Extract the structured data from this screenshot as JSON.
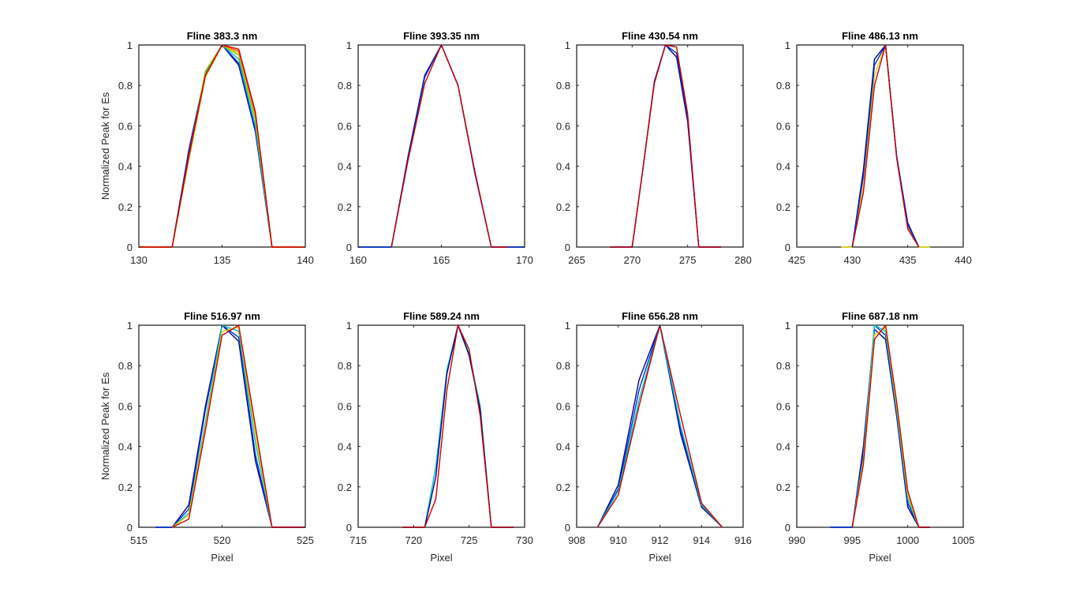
{
  "chart_data": [
    {
      "type": "line",
      "title": "Fline 383.3 nm",
      "ylabel": "Normalized Peak for Es",
      "xlabel": "",
      "xlim": [
        130,
        140
      ],
      "ylim": [
        0,
        1
      ],
      "xticks": [
        "130",
        "135",
        "140"
      ],
      "yticks": [
        "0",
        "0.2",
        "0.4",
        "0.6",
        "0.8",
        "1"
      ],
      "grid": false,
      "series": [
        {
          "color": "#00008f",
          "x": [
            130,
            131,
            132,
            133,
            134,
            135,
            136,
            137,
            138,
            139,
            140
          ],
          "y": [
            0,
            0,
            0,
            0.48,
            0.86,
            1.0,
            0.9,
            0.57,
            0,
            0,
            0
          ]
        },
        {
          "color": "#0033cc",
          "x": [
            130,
            131,
            132,
            133,
            134,
            135,
            136,
            137,
            138,
            139,
            140
          ],
          "y": [
            0,
            0,
            0,
            0.47,
            0.85,
            1.0,
            0.91,
            0.58,
            0,
            0,
            0
          ]
        },
        {
          "color": "#00c0c0",
          "x": [
            130,
            131,
            132,
            133,
            134,
            135,
            136,
            137,
            138,
            139,
            140
          ],
          "y": [
            0,
            0,
            0,
            0.45,
            0.86,
            1.0,
            0.93,
            0.6,
            0,
            0,
            0
          ]
        },
        {
          "color": "#80c000",
          "x": [
            130,
            131,
            132,
            133,
            134,
            135,
            136,
            137,
            138,
            139,
            140
          ],
          "y": [
            0,
            0,
            0,
            0.44,
            0.87,
            1.0,
            0.95,
            0.63,
            0,
            0,
            0
          ]
        },
        {
          "color": "#e6d200",
          "x": [
            130,
            131,
            132,
            133,
            134,
            135,
            136,
            137,
            138,
            139,
            140
          ],
          "y": [
            0,
            0,
            0,
            0.43,
            0.84,
            1.0,
            0.96,
            0.65,
            0,
            0,
            0
          ]
        },
        {
          "color": "#ff4000",
          "x": [
            130,
            131,
            132,
            133,
            134,
            135,
            136,
            137,
            138,
            139,
            140
          ],
          "y": [
            0,
            0,
            0,
            0.44,
            0.85,
            1.0,
            0.97,
            0.66,
            0,
            0,
            0
          ]
        },
        {
          "color": "#cc0000",
          "x": [
            130,
            131,
            132,
            133,
            134,
            135,
            136,
            137,
            138,
            139,
            140
          ],
          "y": [
            0,
            0,
            0,
            0.45,
            0.85,
            1.0,
            0.98,
            0.67,
            0,
            0,
            0
          ]
        }
      ]
    },
    {
      "type": "line",
      "title": "Fline 393.35 nm",
      "ylabel": "",
      "xlabel": "",
      "xlim": [
        160,
        170
      ],
      "ylim": [
        0,
        1
      ],
      "xticks": [
        "160",
        "165",
        "170"
      ],
      "yticks": [
        "0",
        "0.2",
        "0.4",
        "0.6",
        "0.8",
        "1"
      ],
      "grid": false,
      "series": [
        {
          "color": "#00008f",
          "x": [
            160,
            161,
            162,
            163,
            164,
            165,
            166,
            167,
            168,
            169,
            170
          ],
          "y": [
            0,
            0,
            0,
            0.45,
            0.85,
            1.0,
            0.8,
            0.37,
            0,
            0,
            0
          ]
        },
        {
          "color": "#0033cc",
          "x": [
            160,
            161,
            162,
            163,
            164,
            165,
            166,
            167,
            168,
            169,
            170
          ],
          "y": [
            0,
            0,
            0,
            0.44,
            0.84,
            1.0,
            0.8,
            0.37,
            0,
            0,
            0
          ]
        },
        {
          "color": "#cc0000",
          "x": [
            162,
            163,
            164,
            165,
            166,
            167,
            168,
            169
          ],
          "y": [
            0,
            0.43,
            0.81,
            1.0,
            0.8,
            0.38,
            0,
            0
          ]
        }
      ]
    },
    {
      "type": "line",
      "title": "Fline 430.54 nm",
      "ylabel": "",
      "xlabel": "",
      "xlim": [
        265,
        280
      ],
      "ylim": [
        0,
        1
      ],
      "xticks": [
        "265",
        "270",
        "275",
        "280"
      ],
      "yticks": [
        "0",
        "0.2",
        "0.4",
        "0.6",
        "0.8",
        "1"
      ],
      "grid": false,
      "series": [
        {
          "color": "#00008f",
          "x": [
            268,
            269,
            270,
            271,
            272,
            273,
            274,
            275,
            276,
            277,
            278
          ],
          "y": [
            0,
            0,
            0,
            0.4,
            0.82,
            1.0,
            0.94,
            0.62,
            0,
            0,
            0
          ]
        },
        {
          "color": "#0033cc",
          "x": [
            268,
            269,
            270,
            271,
            272,
            273,
            274,
            275,
            276,
            277,
            278
          ],
          "y": [
            0,
            0,
            0,
            0.4,
            0.82,
            1.0,
            0.96,
            0.64,
            0,
            0,
            0
          ]
        },
        {
          "color": "#cc0000",
          "x": [
            268,
            269,
            270,
            271,
            272,
            273,
            274,
            275,
            276,
            277,
            278
          ],
          "y": [
            0,
            0,
            0,
            0.4,
            0.81,
            1.0,
            0.99,
            0.66,
            0,
            0,
            0
          ]
        }
      ]
    },
    {
      "type": "line",
      "title": "Fline 486.13 nm",
      "ylabel": "",
      "xlabel": "",
      "xlim": [
        425,
        440
      ],
      "ylim": [
        0,
        1
      ],
      "xticks": [
        "425",
        "430",
        "435",
        "440"
      ],
      "yticks": [
        "0",
        "0.2",
        "0.4",
        "0.6",
        "0.8",
        "1"
      ],
      "grid": false,
      "series": [
        {
          "color": "#e6d200",
          "x": [
            429,
            430,
            431,
            432,
            433,
            434,
            435,
            436,
            437
          ],
          "y": [
            0,
            0,
            0.3,
            0.85,
            1.0,
            0.45,
            0.1,
            0,
            0
          ]
        },
        {
          "color": "#00008f",
          "x": [
            430,
            431,
            432,
            433,
            434,
            435,
            436
          ],
          "y": [
            0,
            0.38,
            0.93,
            1.0,
            0.45,
            0.12,
            0
          ]
        },
        {
          "color": "#0033cc",
          "x": [
            430,
            431,
            432,
            433,
            434,
            435,
            436
          ],
          "y": [
            0,
            0.35,
            0.9,
            1.0,
            0.45,
            0.11,
            0
          ]
        },
        {
          "color": "#cc0000",
          "x": [
            430,
            431,
            432,
            433,
            434,
            435,
            436
          ],
          "y": [
            0,
            0.27,
            0.8,
            1.0,
            0.44,
            0.09,
            0
          ]
        }
      ]
    },
    {
      "type": "line",
      "title": "Fline 516.97 nm",
      "ylabel": "Normalized Peak for Es",
      "xlabel": "Pixel",
      "xlim": [
        515,
        525
      ],
      "ylim": [
        0,
        1
      ],
      "xticks": [
        "515",
        "520",
        "525"
      ],
      "yticks": [
        "0",
        "0.2",
        "0.4",
        "0.6",
        "0.8",
        "1"
      ],
      "grid": false,
      "series": [
        {
          "color": "#00008f",
          "x": [
            516,
            517,
            518,
            519,
            520,
            521,
            522,
            523,
            524,
            525
          ],
          "y": [
            0,
            0,
            0.11,
            0.6,
            1.0,
            0.92,
            0.33,
            0,
            0,
            0
          ]
        },
        {
          "color": "#0033cc",
          "x": [
            516,
            517,
            518,
            519,
            520,
            521,
            522,
            523,
            524,
            525
          ],
          "y": [
            0,
            0,
            0.09,
            0.58,
            1.0,
            0.94,
            0.36,
            0,
            0,
            0
          ]
        },
        {
          "color": "#00c0c0",
          "x": [
            517,
            518,
            519,
            520,
            521,
            522,
            523
          ],
          "y": [
            0,
            0.07,
            0.52,
            1.0,
            0.97,
            0.42,
            0
          ]
        },
        {
          "color": "#e6d200",
          "x": [
            517,
            518,
            519,
            520,
            521,
            522,
            523
          ],
          "y": [
            0,
            0.06,
            0.5,
            0.97,
            0.99,
            0.46,
            0
          ]
        },
        {
          "color": "#cc0000",
          "x": [
            517,
            518,
            519,
            520,
            521,
            522,
            523,
            524,
            525
          ],
          "y": [
            0,
            0.04,
            0.48,
            0.95,
            1.0,
            0.5,
            0,
            0,
            0
          ]
        }
      ]
    },
    {
      "type": "line",
      "title": "Fline 589.24 nm",
      "ylabel": "",
      "xlabel": "Pixel",
      "xlim": [
        715,
        730
      ],
      "ylim": [
        0,
        1
      ],
      "xticks": [
        "715",
        "720",
        "725",
        "730"
      ],
      "yticks": [
        "0",
        "0.2",
        "0.4",
        "0.6",
        "0.8",
        "1"
      ],
      "grid": false,
      "series": [
        {
          "color": "#00c0c0",
          "x": [
            719,
            720,
            721,
            722,
            723,
            724,
            725,
            726,
            727,
            728,
            729
          ],
          "y": [
            0,
            0,
            0,
            0.3,
            0.78,
            1.0,
            0.86,
            0.6,
            0,
            0,
            0
          ]
        },
        {
          "color": "#00008f",
          "x": [
            719,
            720,
            721,
            722,
            723,
            724,
            725,
            726,
            727,
            728,
            729
          ],
          "y": [
            0,
            0,
            0,
            0.25,
            0.76,
            1.0,
            0.85,
            0.58,
            0,
            0,
            0
          ]
        },
        {
          "color": "#cc0000",
          "x": [
            719,
            720,
            721,
            722,
            723,
            724,
            725,
            726,
            727,
            728,
            729
          ],
          "y": [
            0,
            0,
            0,
            0.14,
            0.68,
            1.0,
            0.88,
            0.55,
            0,
            0,
            0
          ]
        }
      ]
    },
    {
      "type": "line",
      "title": "Fline 656.28 nm",
      "ylabel": "",
      "xlabel": "Pixel",
      "xlim": [
        908,
        916
      ],
      "ylim": [
        0,
        1
      ],
      "xticks": [
        "908",
        "910",
        "912",
        "914",
        "916"
      ],
      "yticks": [
        "0",
        "0.2",
        "0.4",
        "0.6",
        "0.8",
        "1"
      ],
      "grid": false,
      "series": [
        {
          "color": "#00008f",
          "x": [
            909,
            910,
            911,
            912,
            913,
            914,
            915
          ],
          "y": [
            0,
            0.21,
            0.73,
            1.0,
            0.46,
            0.1,
            0
          ]
        },
        {
          "color": "#0033cc",
          "x": [
            909,
            910,
            911,
            912,
            913,
            914,
            915
          ],
          "y": [
            0,
            0.19,
            0.68,
            1.0,
            0.48,
            0.11,
            0
          ]
        },
        {
          "color": "#00c0c0",
          "x": [
            909,
            910,
            911,
            912,
            913,
            914,
            915
          ],
          "y": [
            0,
            0.18,
            0.63,
            1.0,
            0.5,
            0.11,
            0
          ]
        },
        {
          "color": "#cc0000",
          "x": [
            909,
            910,
            911,
            912,
            913,
            914,
            915
          ],
          "y": [
            0,
            0.16,
            0.6,
            1.0,
            0.55,
            0.12,
            0
          ]
        }
      ]
    },
    {
      "type": "line",
      "title": "Fline 687.18 nm",
      "ylabel": "",
      "xlabel": "Pixel",
      "xlim": [
        990,
        1005
      ],
      "ylim": [
        0,
        1
      ],
      "xticks": [
        "990",
        "995",
        "1000",
        "1005"
      ],
      "yticks": [
        "0",
        "0.2",
        "0.4",
        "0.6",
        "0.8",
        "1"
      ],
      "grid": false,
      "series": [
        {
          "color": "#00008f",
          "x": [
            993,
            994,
            995,
            996,
            997,
            998,
            999,
            1000,
            1001,
            1002
          ],
          "y": [
            0,
            0,
            0,
            0.4,
            0.98,
            0.93,
            0.55,
            0.1,
            0,
            0
          ]
        },
        {
          "color": "#0033cc",
          "x": [
            993,
            994,
            995,
            996,
            997,
            998,
            999,
            1000,
            1001,
            1002
          ],
          "y": [
            0,
            0,
            0,
            0.37,
            1.0,
            0.95,
            0.57,
            0.12,
            0,
            0
          ]
        },
        {
          "color": "#00c0c0",
          "x": [
            995,
            996,
            997,
            998,
            999,
            1000,
            1001
          ],
          "y": [
            0,
            0.34,
            1.0,
            0.97,
            0.58,
            0.14,
            0
          ]
        },
        {
          "color": "#e6d200",
          "x": [
            995,
            996,
            997,
            998,
            999,
            1000,
            1001
          ],
          "y": [
            0,
            0.33,
            0.95,
            0.99,
            0.6,
            0.16,
            0
          ]
        },
        {
          "color": "#cc0000",
          "x": [
            995,
            996,
            997,
            998,
            999,
            1000,
            1001,
            1002
          ],
          "y": [
            0,
            0.31,
            0.93,
            1.0,
            0.62,
            0.18,
            0,
            0
          ]
        }
      ]
    }
  ]
}
